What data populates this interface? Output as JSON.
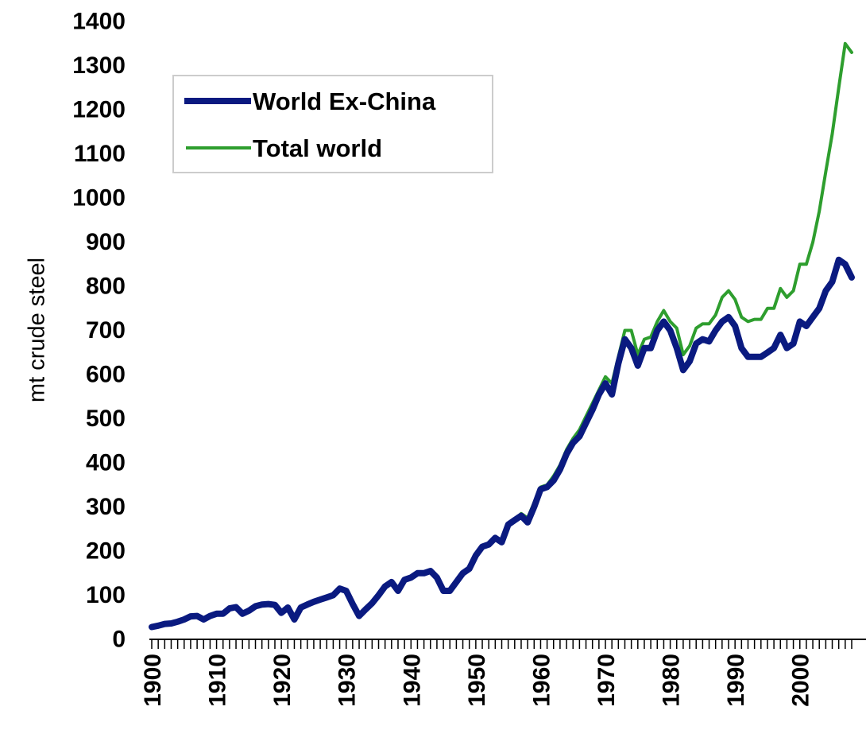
{
  "chart_data": {
    "type": "line",
    "ylabel": "mt crude steel",
    "xlabel": "",
    "xlim": [
      1900,
      2008
    ],
    "ylim": [
      0,
      1400
    ],
    "y_ticks": [
      0,
      100,
      200,
      300,
      400,
      500,
      600,
      700,
      800,
      900,
      1000,
      1100,
      1200,
      1300,
      1400
    ],
    "x_tick_labels": [
      "1900",
      "1910",
      "1920",
      "1930",
      "1940",
      "1950",
      "1960",
      "1970",
      "1980",
      "1990",
      "2000"
    ],
    "grid": false,
    "legend_position": "top-left",
    "series": [
      {
        "name": "World Ex-China",
        "color": "#0a1a80",
        "x": [
          1900,
          1901,
          1902,
          1903,
          1904,
          1905,
          1906,
          1907,
          1908,
          1909,
          1910,
          1911,
          1912,
          1913,
          1914,
          1915,
          1916,
          1917,
          1918,
          1919,
          1920,
          1921,
          1922,
          1923,
          1924,
          1925,
          1926,
          1927,
          1928,
          1929,
          1930,
          1931,
          1932,
          1933,
          1934,
          1935,
          1936,
          1937,
          1938,
          1939,
          1940,
          1941,
          1942,
          1943,
          1944,
          1945,
          1946,
          1947,
          1948,
          1949,
          1950,
          1951,
          1952,
          1953,
          1954,
          1955,
          1956,
          1957,
          1958,
          1959,
          1960,
          1961,
          1962,
          1963,
          1964,
          1965,
          1966,
          1967,
          1968,
          1969,
          1970,
          1971,
          1972,
          1973,
          1974,
          1975,
          1976,
          1977,
          1978,
          1979,
          1980,
          1981,
          1982,
          1983,
          1984,
          1985,
          1986,
          1987,
          1988,
          1989,
          1990,
          1991,
          1992,
          1993,
          1994,
          1995,
          1996,
          1997,
          1998,
          1999,
          2000,
          2001,
          2002,
          2003,
          2004,
          2005,
          2006,
          2007,
          2008
        ],
        "values": [
          28,
          31,
          35,
          36,
          40,
          45,
          52,
          53,
          45,
          53,
          58,
          58,
          70,
          73,
          58,
          65,
          75,
          79,
          80,
          78,
          60,
          72,
          45,
          72,
          79,
          85,
          90,
          95,
          100,
          115,
          110,
          80,
          53,
          68,
          82,
          100,
          120,
          130,
          110,
          135,
          140,
          150,
          150,
          155,
          140,
          110,
          110,
          130,
          150,
          160,
          190,
          210,
          215,
          230,
          220,
          260,
          270,
          280,
          265,
          300,
          340,
          345,
          360,
          385,
          420,
          445,
          460,
          490,
          520,
          555,
          580,
          555,
          625,
          680,
          660,
          620,
          660,
          660,
          700,
          720,
          700,
          660,
          610,
          630,
          670,
          680,
          675,
          700,
          720,
          730,
          710,
          660,
          640,
          640,
          640,
          650,
          660,
          690,
          660,
          670,
          720,
          710,
          730,
          750,
          790,
          810,
          860,
          850,
          820
        ]
      },
      {
        "name": "Total world",
        "color": "#2e9e2e",
        "x": [
          1900,
          1901,
          1902,
          1903,
          1904,
          1905,
          1906,
          1907,
          1908,
          1909,
          1910,
          1911,
          1912,
          1913,
          1914,
          1915,
          1916,
          1917,
          1918,
          1919,
          1920,
          1921,
          1922,
          1923,
          1924,
          1925,
          1926,
          1927,
          1928,
          1929,
          1930,
          1931,
          1932,
          1933,
          1934,
          1935,
          1936,
          1937,
          1938,
          1939,
          1940,
          1941,
          1942,
          1943,
          1944,
          1945,
          1946,
          1947,
          1948,
          1949,
          1950,
          1951,
          1952,
          1953,
          1954,
          1955,
          1956,
          1957,
          1958,
          1959,
          1960,
          1961,
          1962,
          1963,
          1964,
          1965,
          1966,
          1967,
          1968,
          1969,
          1970,
          1971,
          1972,
          1973,
          1974,
          1975,
          1976,
          1977,
          1978,
          1979,
          1980,
          1981,
          1982,
          1983,
          1984,
          1985,
          1986,
          1987,
          1988,
          1989,
          1990,
          1991,
          1992,
          1993,
          1994,
          1995,
          1996,
          1997,
          1998,
          1999,
          2000,
          2001,
          2002,
          2003,
          2004,
          2005,
          2006,
          2007,
          2008
        ],
        "values": [
          28,
          31,
          35,
          36,
          40,
          45,
          52,
          53,
          45,
          53,
          58,
          58,
          70,
          73,
          58,
          65,
          75,
          79,
          80,
          78,
          60,
          72,
          45,
          72,
          79,
          85,
          90,
          95,
          100,
          115,
          110,
          80,
          53,
          68,
          82,
          100,
          120,
          130,
          110,
          135,
          140,
          150,
          150,
          155,
          140,
          110,
          110,
          130,
          150,
          160,
          190,
          210,
          215,
          230,
          220,
          260,
          270,
          285,
          275,
          310,
          345,
          350,
          370,
          395,
          430,
          455,
          475,
          505,
          535,
          565,
          595,
          580,
          640,
          700,
          700,
          645,
          680,
          685,
          720,
          745,
          720,
          705,
          645,
          665,
          705,
          715,
          715,
          735,
          775,
          790,
          770,
          730,
          720,
          725,
          725,
          750,
          750,
          795,
          775,
          790,
          850,
          850,
          900,
          970,
          1060,
          1145,
          1250,
          1350,
          1330
        ]
      }
    ]
  }
}
